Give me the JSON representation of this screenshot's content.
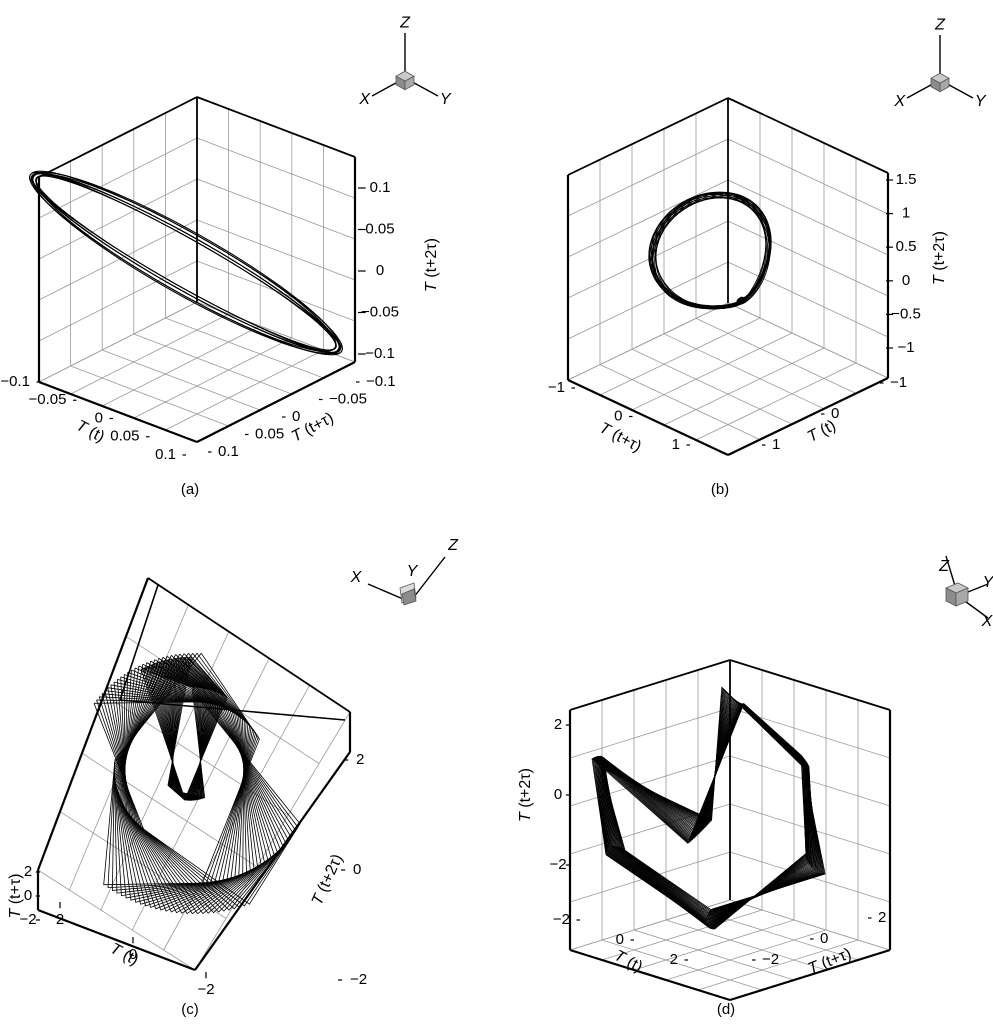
{
  "chart_data": [
    {
      "type": "line",
      "panel_label": "(a)",
      "axes": [
        {
          "label": "T (t)",
          "ticks": [
            "−0.1",
            "−0.05",
            "0",
            "0.05",
            "0.1"
          ],
          "range": [
            -0.1,
            0.1
          ]
        },
        {
          "label": "T (t+τ)",
          "ticks": [
            "−0.1",
            "−0.05",
            "0",
            "0.05",
            "0.1"
          ],
          "range": [
            -0.1,
            0.1
          ]
        },
        {
          "label": "T (t+2τ)",
          "ticks": [
            "−0.1",
            "−0.05",
            "0",
            "0.05",
            "0.1"
          ],
          "range": [
            -0.1,
            0.1
          ]
        }
      ],
      "triad": [
        "X",
        "Y",
        "Z"
      ],
      "grid": true,
      "trajectory": {
        "shape": "tilted-ellipse",
        "x_amplitude": 0.1,
        "y_amplitude": 0.1,
        "z_amplitude": 0.1,
        "loops": 14
      }
    },
    {
      "type": "line",
      "panel_label": "(b)",
      "axes": [
        {
          "label": "T (t)",
          "ticks": [
            "−1",
            "0",
            "1"
          ],
          "range": [
            -1,
            1
          ]
        },
        {
          "label": "T (t+τ)",
          "ticks": [
            "−1",
            "0",
            "1"
          ],
          "range": [
            -1,
            1
          ]
        },
        {
          "label": "T (t+2τ)",
          "ticks": [
            "−1",
            "−0.5",
            "0",
            "0.5",
            "1",
            "1.5"
          ],
          "range": [
            -1.2,
            1.5
          ]
        }
      ],
      "triad": [
        "X",
        "Y",
        "Z"
      ],
      "grid": true,
      "trajectory": {
        "shape": "double-loop",
        "amplitude": 1.1,
        "loops": 14
      }
    },
    {
      "type": "line",
      "panel_label": "(c)",
      "axes": [
        {
          "label": "T (t)",
          "ticks": [
            "−2",
            "0",
            "2"
          ],
          "range": [
            -2.5,
            2.5
          ]
        },
        {
          "label": "T (t+τ)",
          "ticks": [
            "−2",
            "0",
            "2"
          ],
          "range": [
            -2.5,
            2.5
          ]
        },
        {
          "label": "T (t+2τ)",
          "ticks": [
            "−2",
            "0",
            "2"
          ],
          "range": [
            -2.5,
            2.5
          ]
        }
      ],
      "triad": [
        "X",
        "Y",
        "Z"
      ],
      "grid": true,
      "trajectory": {
        "shape": "rotating-polygon",
        "amplitude": 2.5,
        "loops": 30
      }
    },
    {
      "type": "line",
      "panel_label": "(d)",
      "axes": [
        {
          "label": "T (t)",
          "ticks": [
            "−2",
            "0",
            "2"
          ],
          "range": [
            -2.5,
            2.5
          ]
        },
        {
          "label": "T (t+τ)",
          "ticks": [
            "−2",
            "0",
            "2"
          ],
          "range": [
            -2.5,
            2.5
          ]
        },
        {
          "label": "T (t+2τ)",
          "ticks": [
            "−2",
            "0",
            "2"
          ],
          "range": [
            -2.5,
            2.5
          ]
        }
      ],
      "triad": [
        "Z",
        "Y",
        "X"
      ],
      "grid": true,
      "trajectory": {
        "shape": "rotating-polygon",
        "amplitude": 2.5,
        "loops": 30
      }
    }
  ],
  "colors": {
    "line": "#000000",
    "grid": "#9a9a9a",
    "box": "#000000",
    "triad_cube": "#8c8c8c"
  }
}
